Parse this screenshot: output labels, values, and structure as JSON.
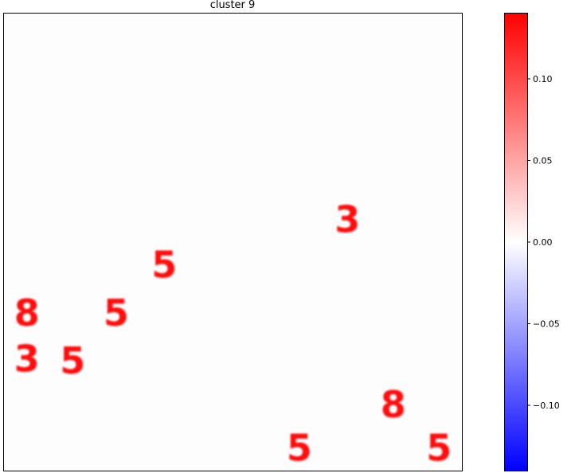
{
  "chart_data": {
    "type": "heatmap",
    "title": "cluster 9",
    "xlabel": "",
    "ylabel": "",
    "axes_ticks_visible": false,
    "grid": false,
    "colormap": "bwr",
    "colorbar": {
      "range": [
        -0.14,
        0.14
      ],
      "ticks": [
        -0.1,
        -0.05,
        0.0,
        0.05,
        0.1
      ],
      "tick_labels": [
        "−0.10",
        "−0.05",
        "0.00",
        "0.05",
        "0.10"
      ],
      "placement": "right"
    },
    "glyphs": [
      {
        "char": "3",
        "cx": 0.75,
        "cy": 0.45
      },
      {
        "char": "5",
        "cx": 0.35,
        "cy": 0.55
      },
      {
        "char": "8",
        "cx": 0.05,
        "cy": 0.655
      },
      {
        "char": "5",
        "cx": 0.245,
        "cy": 0.655
      },
      {
        "char": "3",
        "cx": 0.05,
        "cy": 0.755
      },
      {
        "char": "5",
        "cx": 0.15,
        "cy": 0.76
      },
      {
        "char": "8",
        "cx": 0.85,
        "cy": 0.855
      },
      {
        "char": "5",
        "cx": 0.645,
        "cy": 0.95
      },
      {
        "char": "5",
        "cx": 0.95,
        "cy": 0.95
      }
    ],
    "glyph_value": 0.14
  }
}
